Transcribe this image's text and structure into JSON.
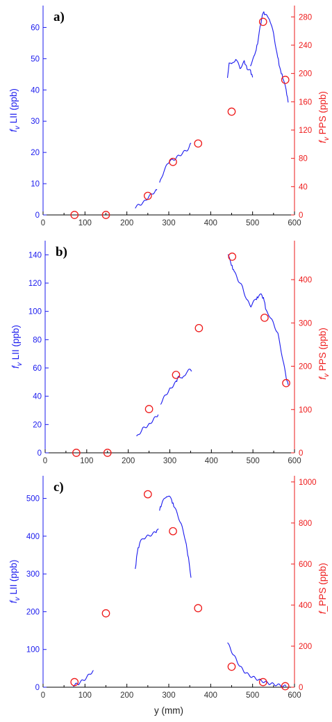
{
  "colors": {
    "left_axis": "#1a1aee",
    "right_axis": "#ee1a1a",
    "frame": "#000000"
  },
  "x_axis_label": "y (mm)",
  "chart_data": [
    {
      "type": "line",
      "panel_label": "a)",
      "xlabel": "y (mm)",
      "ylabel": "f_v LII (ppb)",
      "ylabel_right": "f_v PPS (ppb)",
      "xlim": [
        0,
        600
      ],
      "ylim": [
        0,
        67
      ],
      "ylim_right": [
        0,
        296
      ],
      "x_ticks": [
        0,
        100,
        200,
        300,
        400,
        500,
        600
      ],
      "y_ticks": [
        0,
        10,
        20,
        30,
        40,
        50,
        60
      ],
      "y_ticks_right": [
        0,
        40,
        80,
        120,
        160,
        200,
        240,
        280
      ],
      "series": [
        {
          "axis": "left",
          "style": "line",
          "segments": [
            [
              [
                220,
                2.5
              ],
              [
                240,
                4
              ],
              [
                250,
                5.5
              ],
              [
                262,
                7
              ],
              [
                272,
                8
              ]
            ],
            [
              [
                278,
                10
              ],
              [
                288,
                14
              ],
              [
                300,
                17
              ],
              [
                315,
                18
              ],
              [
                330,
                19.5
              ],
              [
                345,
                21
              ],
              [
                353,
                23
              ]
            ],
            [
              [
                440,
                44
              ],
              [
                444,
                49
              ],
              [
                450,
                48
              ],
              [
                460,
                50
              ],
              [
                470,
                47
              ],
              [
                480,
                49
              ],
              [
                487,
                47
              ],
              [
                495,
                46
              ],
              [
                500,
                44
              ]
            ],
            [
              [
                495,
                48
              ],
              [
                505,
                51
              ],
              [
                512,
                55
              ],
              [
                518,
                60
              ],
              [
                525,
                65
              ],
              [
                530,
                64
              ],
              [
                540,
                63
              ],
              [
                550,
                58
              ],
              [
                558,
                52
              ],
              [
                565,
                47
              ],
              [
                572,
                44
              ],
              [
                580,
                40
              ],
              [
                585,
                36
              ]
            ]
          ]
        },
        {
          "axis": "right",
          "style": "marker",
          "points": [
            [
              75,
              0
            ],
            [
              150,
              0
            ],
            [
              250,
              27
            ],
            [
              310,
              75
            ],
            [
              370,
              101
            ],
            [
              450,
              146
            ],
            [
              525,
              273
            ],
            [
              578,
              191
            ]
          ]
        }
      ]
    },
    {
      "type": "line",
      "panel_label": "b)",
      "xlabel": "y (mm)",
      "ylabel": "f_v LII (ppb)",
      "ylabel_right": "f_v PPS (ppb)",
      "xlim": [
        0,
        600
      ],
      "ylim": [
        0,
        150
      ],
      "ylim_right": [
        0,
        490
      ],
      "x_ticks": [
        0,
        100,
        200,
        300,
        400,
        500,
        600
      ],
      "y_ticks": [
        0,
        20,
        40,
        60,
        80,
        100,
        120,
        140
      ],
      "y_ticks_right": [
        0,
        100,
        200,
        300,
        400
      ],
      "series": [
        {
          "axis": "left",
          "style": "line",
          "segments": [
            [
              [
                220,
                11
              ],
              [
                235,
                17
              ],
              [
                250,
                20
              ],
              [
                262,
                24
              ],
              [
                272,
                27
              ]
            ],
            [
              [
                278,
                35
              ],
              [
                288,
                40
              ],
              [
                300,
                45
              ],
              [
                315,
                50
              ],
              [
                322,
                55
              ],
              [
                330,
                52
              ],
              [
                340,
                57
              ],
              [
                350,
                59
              ],
              [
                353,
                58
              ]
            ],
            [
              [
                440,
                140
              ],
              [
                448,
                133
              ],
              [
                455,
                128
              ],
              [
                465,
                122
              ],
              [
                475,
                117
              ],
              [
                485,
                108
              ],
              [
                495,
                104
              ],
              [
                505,
                108
              ],
              [
                512,
                110
              ],
              [
                520,
                112
              ],
              [
                527,
                108
              ],
              [
                532,
                100
              ],
              [
                540,
                97
              ],
              [
                550,
                91
              ],
              [
                560,
                84
              ],
              [
                568,
                72
              ],
              [
                574,
                63
              ],
              [
                580,
                53
              ],
              [
                585,
                48
              ]
            ]
          ]
        },
        {
          "axis": "right",
          "style": "marker",
          "points": [
            [
              75,
              0
            ],
            [
              150,
              0
            ],
            [
              250,
              101
            ],
            [
              315,
              180
            ],
            [
              370,
              288
            ],
            [
              450,
              453
            ],
            [
              528,
              312
            ],
            [
              580,
              161
            ]
          ]
        }
      ]
    },
    {
      "type": "line",
      "panel_label": "c)",
      "xlabel": "y (mm)",
      "ylabel": "f_v LII (ppb)",
      "ylabel_right": "f_PPS (ppb)",
      "xlim": [
        0,
        600
      ],
      "ylim": [
        0,
        560
      ],
      "ylim_right": [
        0,
        1030
      ],
      "x_ticks": [
        0,
        100,
        200,
        300,
        400,
        500,
        600
      ],
      "y_ticks": [
        0,
        100,
        200,
        300,
        400,
        500
      ],
      "y_ticks_right": [
        0,
        200,
        400,
        600,
        800,
        1000
      ],
      "series": [
        {
          "axis": "left",
          "style": "line",
          "segments": [
            [
              [
                72,
                5
              ],
              [
                85,
                10
              ],
              [
                100,
                22
              ],
              [
                112,
                35
              ],
              [
                120,
                45
              ]
            ],
            [
              [
                220,
                310
              ],
              [
                225,
                360
              ],
              [
                232,
                385
              ],
              [
                240,
                395
              ],
              [
                250,
                400
              ],
              [
                260,
                405
              ],
              [
                270,
                412
              ],
              [
                275,
                420
              ]
            ],
            [
              [
                278,
                470
              ],
              [
                285,
                490
              ],
              [
                295,
                508
              ],
              [
                305,
                500
              ],
              [
                312,
                480
              ],
              [
                320,
                460
              ],
              [
                330,
                430
              ],
              [
                340,
                390
              ],
              [
                347,
                340
              ],
              [
                353,
                290
              ]
            ],
            [
              [
                440,
                118
              ],
              [
                450,
                95
              ],
              [
                460,
                75
              ],
              [
                470,
                55
              ],
              [
                480,
                42
              ],
              [
                490,
                33
              ],
              [
                500,
                27
              ],
              [
                510,
                22
              ],
              [
                520,
                17
              ],
              [
                530,
                14
              ],
              [
                540,
                10
              ],
              [
                555,
                7
              ],
              [
                570,
                4
              ],
              [
                580,
                2
              ]
            ]
          ]
        },
        {
          "axis": "right",
          "style": "marker",
          "points": [
            [
              75,
              25
            ],
            [
              150,
              360
            ],
            [
              250,
              940
            ],
            [
              310,
              760
            ],
            [
              370,
              385
            ],
            [
              450,
              100
            ],
            [
              525,
              25
            ],
            [
              578,
              5
            ]
          ]
        }
      ]
    }
  ]
}
